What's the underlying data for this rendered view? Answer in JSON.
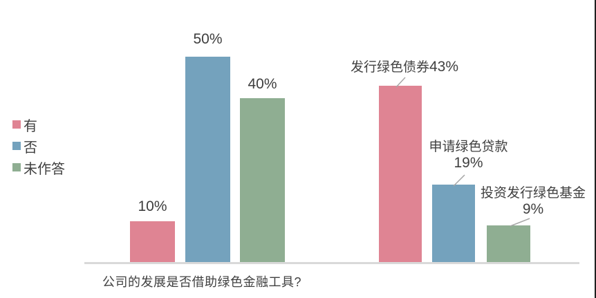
{
  "chart_data": {
    "type": "bar",
    "title": "",
    "legend": {
      "position": "left",
      "items": [
        {
          "label": "有",
          "color": "#DF8493"
        },
        {
          "label": "否",
          "color": "#74A2BD"
        },
        {
          "label": "未作答",
          "color": "#8FAE92"
        }
      ]
    },
    "axis": {
      "x_label": "公司的发展是否借助绿色金融工具?",
      "ylim": [
        0,
        50
      ],
      "unit": "%",
      "grid": false,
      "y_axis_visible": false
    },
    "groups": [
      {
        "axis_label": "公司的发展是否借助绿色金融工具?",
        "bars": [
          {
            "series": "有",
            "value": 10,
            "value_label": "10%"
          },
          {
            "series": "否",
            "value": 50,
            "value_label": "50%"
          },
          {
            "series": "未作答",
            "value": 40,
            "value_label": "40%"
          }
        ]
      },
      {
        "axis_label": "",
        "bars": [
          {
            "series": "有",
            "callout": "发行绿色债券",
            "value": 43,
            "value_label": "43%"
          },
          {
            "series": "否",
            "callout": "申请绿色贷款",
            "value": 19,
            "value_label": "19%"
          },
          {
            "series": "未作答",
            "callout": "投资发行绿色基金",
            "value": 9,
            "value_label": "9%"
          }
        ]
      }
    ],
    "styles": {
      "background": "#FFFFFF",
      "axis_line_color": "#D9D9D9",
      "label_text_color": "#404040",
      "leader_line_color": "#A6A6A6",
      "right_border_color": "#1F1F1F"
    }
  }
}
